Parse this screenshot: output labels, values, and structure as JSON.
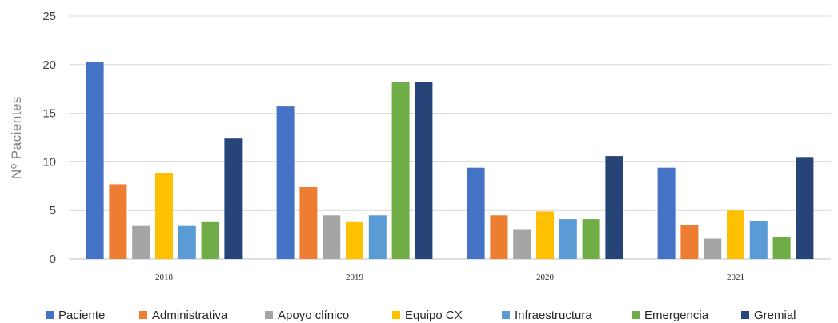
{
  "chart_data": {
    "type": "bar",
    "title": "",
    "xlabel": "",
    "ylabel": "Nº Pacientes",
    "ylim": [
      0,
      25
    ],
    "yticks": [
      0,
      5,
      10,
      15,
      20,
      25
    ],
    "grid": true,
    "legend_position": "bottom",
    "categories": [
      "2018",
      "2019",
      "2020",
      "2021"
    ],
    "series": [
      {
        "name": "Paciente",
        "color": "#4472c4",
        "values": [
          20.3,
          15.7,
          9.4,
          9.4
        ]
      },
      {
        "name": "Administrativa",
        "color": "#ed7d31",
        "values": [
          7.7,
          7.4,
          4.5,
          3.5
        ]
      },
      {
        "name": "Apoyo clínico",
        "color": "#a5a5a5",
        "values": [
          3.4,
          4.5,
          3.0,
          2.1
        ]
      },
      {
        "name": "Equipo CX",
        "color": "#ffc000",
        "values": [
          8.8,
          3.8,
          4.9,
          5.0
        ]
      },
      {
        "name": "Infraestructura",
        "color": "#5b9bd5",
        "values": [
          3.4,
          4.5,
          4.1,
          3.9
        ]
      },
      {
        "name": "Emergencia",
        "color": "#70ad47",
        "values": [
          3.8,
          18.2,
          4.1,
          2.3
        ]
      },
      {
        "name": "Gremial",
        "color": "#264478",
        "values": [
          12.4,
          18.2,
          10.6,
          10.5
        ]
      }
    ]
  }
}
